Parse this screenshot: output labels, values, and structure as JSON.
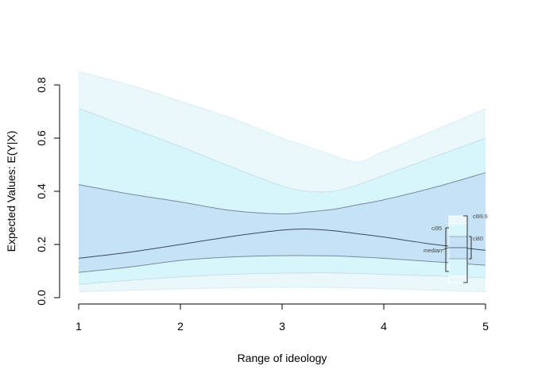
{
  "chart_data": {
    "type": "area",
    "title": "",
    "xlabel": "Range of ideology",
    "ylabel": "Expected Values: E(Y|X)",
    "xlim": [
      1,
      5
    ],
    "ylim": [
      0,
      0.8
    ],
    "xticks": [
      "1",
      "2",
      "3",
      "4",
      "5"
    ],
    "yticks": [
      "0.0",
      "0.2",
      "0.4",
      "0.6",
      "0.8"
    ],
    "x": [
      1,
      1.5,
      2,
      2.5,
      3,
      3.25,
      3.5,
      3.75,
      4,
      4.5,
      5
    ],
    "median": [
      0.148,
      0.171,
      0.2,
      0.23,
      0.254,
      0.258,
      0.252,
      0.24,
      0.228,
      0.2,
      0.178
    ],
    "ci80": {
      "lower": [
        0.095,
        0.115,
        0.14,
        0.153,
        0.158,
        0.158,
        0.157,
        0.153,
        0.148,
        0.135,
        0.122
      ],
      "upper": [
        0.425,
        0.39,
        0.36,
        0.328,
        0.315,
        0.322,
        0.332,
        0.35,
        0.368,
        0.415,
        0.47
      ]
    },
    "ci95": {
      "lower": [
        0.05,
        0.065,
        0.078,
        0.088,
        0.092,
        0.093,
        0.093,
        0.091,
        0.088,
        0.082,
        0.075
      ]
    },
    "ci95_upper": [
      0.712,
      0.64,
      0.568,
      0.492,
      0.42,
      0.4,
      0.4,
      0.425,
      0.46,
      0.53,
      0.6
    ],
    "ci999": {
      "lower": [
        0.022,
        0.028,
        0.033,
        0.037,
        0.039,
        0.039,
        0.038,
        0.036,
        0.034,
        0.028,
        0.022
      ],
      "upper": [
        0.85,
        0.8,
        0.738,
        0.675,
        0.6,
        0.568,
        0.535,
        0.51,
        0.55,
        0.63,
        0.71
      ]
    },
    "legend": {
      "position": "right",
      "labels": {
        "ci95": "ci95",
        "median": "median",
        "ci999": "ci99.9",
        "ci80": "ci80"
      }
    },
    "colors": {
      "ci999": "#eaf8fc",
      "ci95": "#d7f6fb",
      "ci80": "#c6e2f6",
      "median_line": "#3a4a5c",
      "band_edge": "#7a8a9c"
    }
  }
}
